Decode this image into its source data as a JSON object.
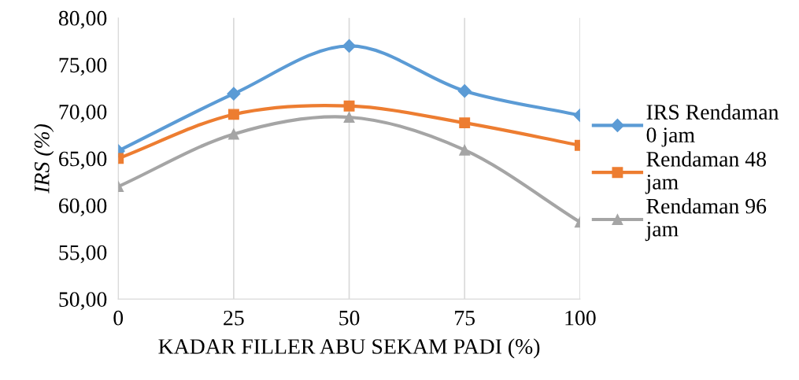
{
  "chart_data": {
    "type": "line",
    "xlabel": "KADAR FILLER ABU SEKAM PADI (%)",
    "ylabel": "IRS (%)",
    "x": [
      0,
      25,
      50,
      75,
      100
    ],
    "series": [
      {
        "name": "IRS Rendaman 0 jam",
        "color": "#5b9bd5",
        "marker": "diamond",
        "values": [
          65.8,
          71.9,
          77.0,
          72.2,
          69.6
        ]
      },
      {
        "name": "Rendaman 48 jam",
        "color": "#ed7d31",
        "marker": "square",
        "values": [
          65.0,
          69.7,
          70.6,
          68.8,
          66.4
        ]
      },
      {
        "name": "Rendaman 96 jam",
        "color": "#a5a5a5",
        "marker": "triangle",
        "values": [
          62.0,
          67.6,
          69.4,
          65.9,
          58.2
        ]
      }
    ],
    "xlim": [
      0,
      100
    ],
    "xticks": [
      0,
      25,
      50,
      75,
      100
    ],
    "ylim": [
      50,
      80
    ],
    "yticks": [
      {
        "value": 50,
        "label": "50,00"
      },
      {
        "value": 55,
        "label": "55,00"
      },
      {
        "value": 60,
        "label": "60,00"
      },
      {
        "value": 65,
        "label": "65,00"
      },
      {
        "value": 70,
        "label": "70,00"
      },
      {
        "value": 75,
        "label": "75,00"
      },
      {
        "value": 80,
        "label": "80,00"
      }
    ],
    "grid": "x",
    "legend": "right"
  }
}
